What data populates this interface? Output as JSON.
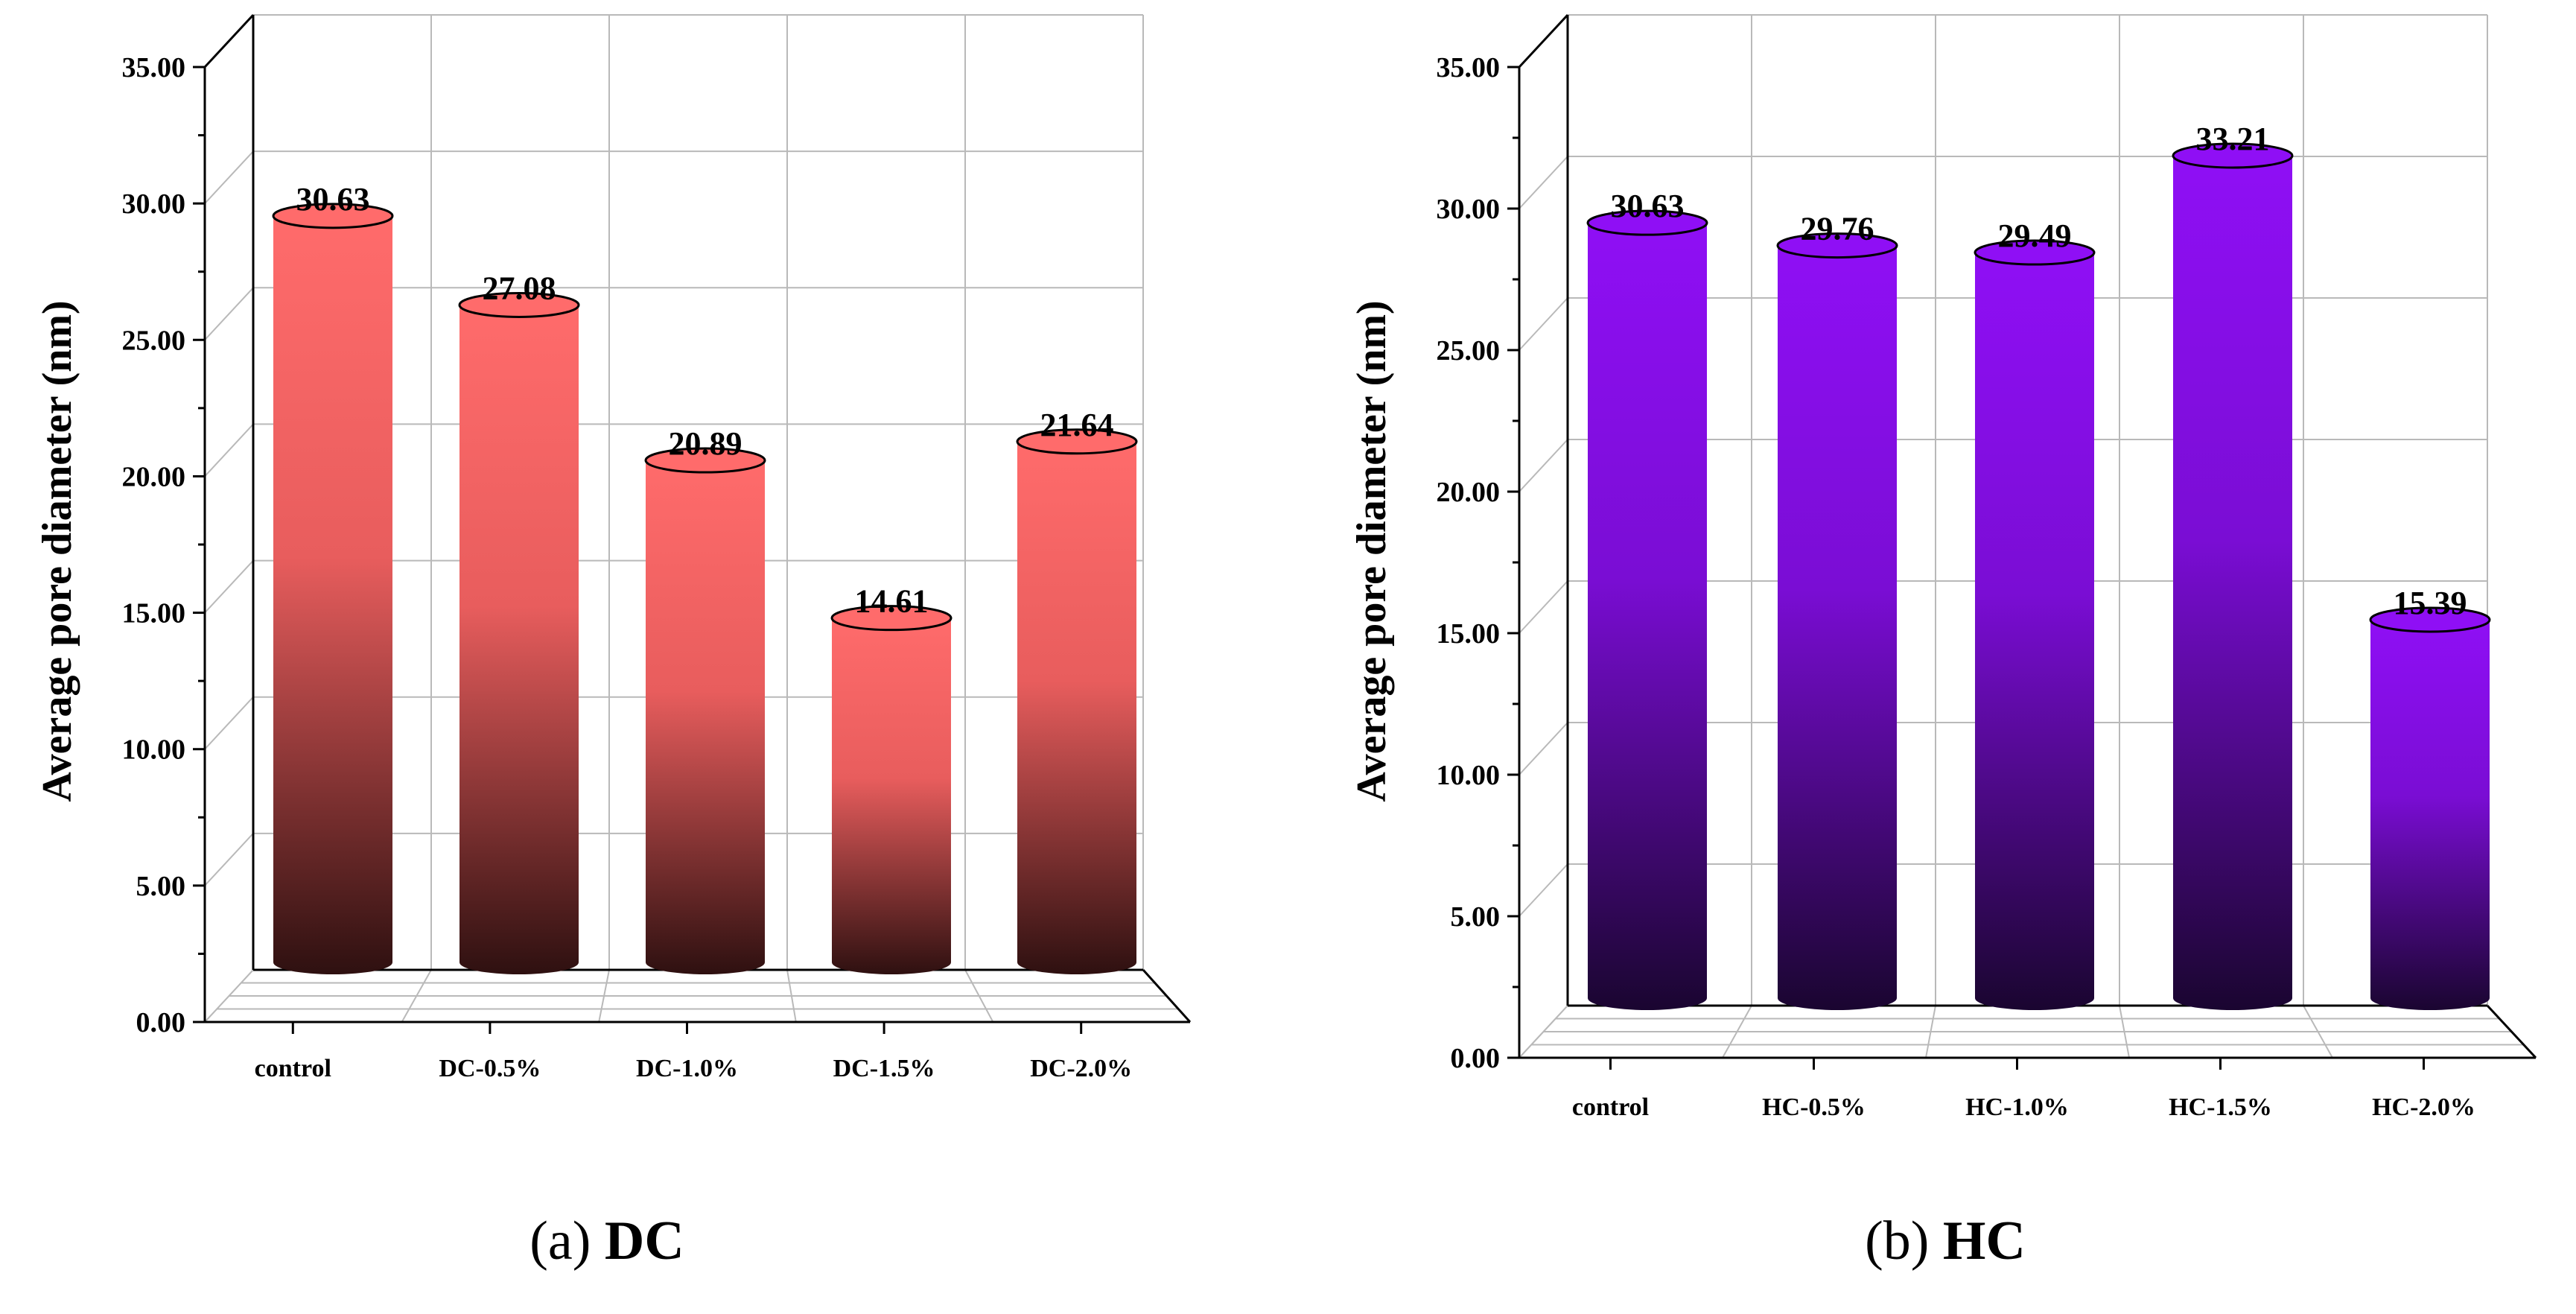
{
  "chart_data": [
    {
      "id": "a",
      "type": "bar",
      "caption_letter": "a",
      "caption_name": "DC",
      "ylabel": "Average pore diameter (nm)",
      "xlabel": "",
      "ylim": [
        0,
        35
      ],
      "ytick_labels": [
        "0.00",
        "5.00",
        "10.00",
        "15.00",
        "20.00",
        "25.00",
        "30.00",
        "35.00"
      ],
      "categories": [
        "control",
        "DC-0.5%",
        "DC-1.0%",
        "DC-1.5%",
        "DC-2.0%"
      ],
      "values": [
        30.63,
        27.08,
        20.89,
        14.61,
        21.64
      ],
      "value_labels": [
        "30.63",
        "27.08",
        "20.89",
        "14.61",
        "21.64"
      ],
      "bar_color_top": "#ff6b6b",
      "bar_color_mid": "#e85d5d",
      "bar_color_bottom": "#2e1010",
      "grid": true
    },
    {
      "id": "b",
      "type": "bar",
      "caption_letter": "b",
      "caption_name": "HC",
      "ylabel": "Average pore diameter (nm)",
      "xlabel": "",
      "ylim": [
        0,
        35
      ],
      "ytick_labels": [
        "0.00",
        "5.00",
        "10.00",
        "15.00",
        "20.00",
        "25.00",
        "30.00",
        "35.00"
      ],
      "categories": [
        "control",
        "HC-0.5%",
        "HC-1.0%",
        "HC-1.5%",
        "HC-2.0%"
      ],
      "values": [
        30.63,
        29.76,
        29.49,
        33.21,
        15.39
      ],
      "value_labels": [
        "30.63",
        "29.76",
        "29.49",
        "33.21",
        "15.39"
      ],
      "bar_color_top": "#8f0ff5",
      "bar_color_mid": "#7a0dd4",
      "bar_color_bottom": "#1a0530",
      "grid": true
    }
  ]
}
